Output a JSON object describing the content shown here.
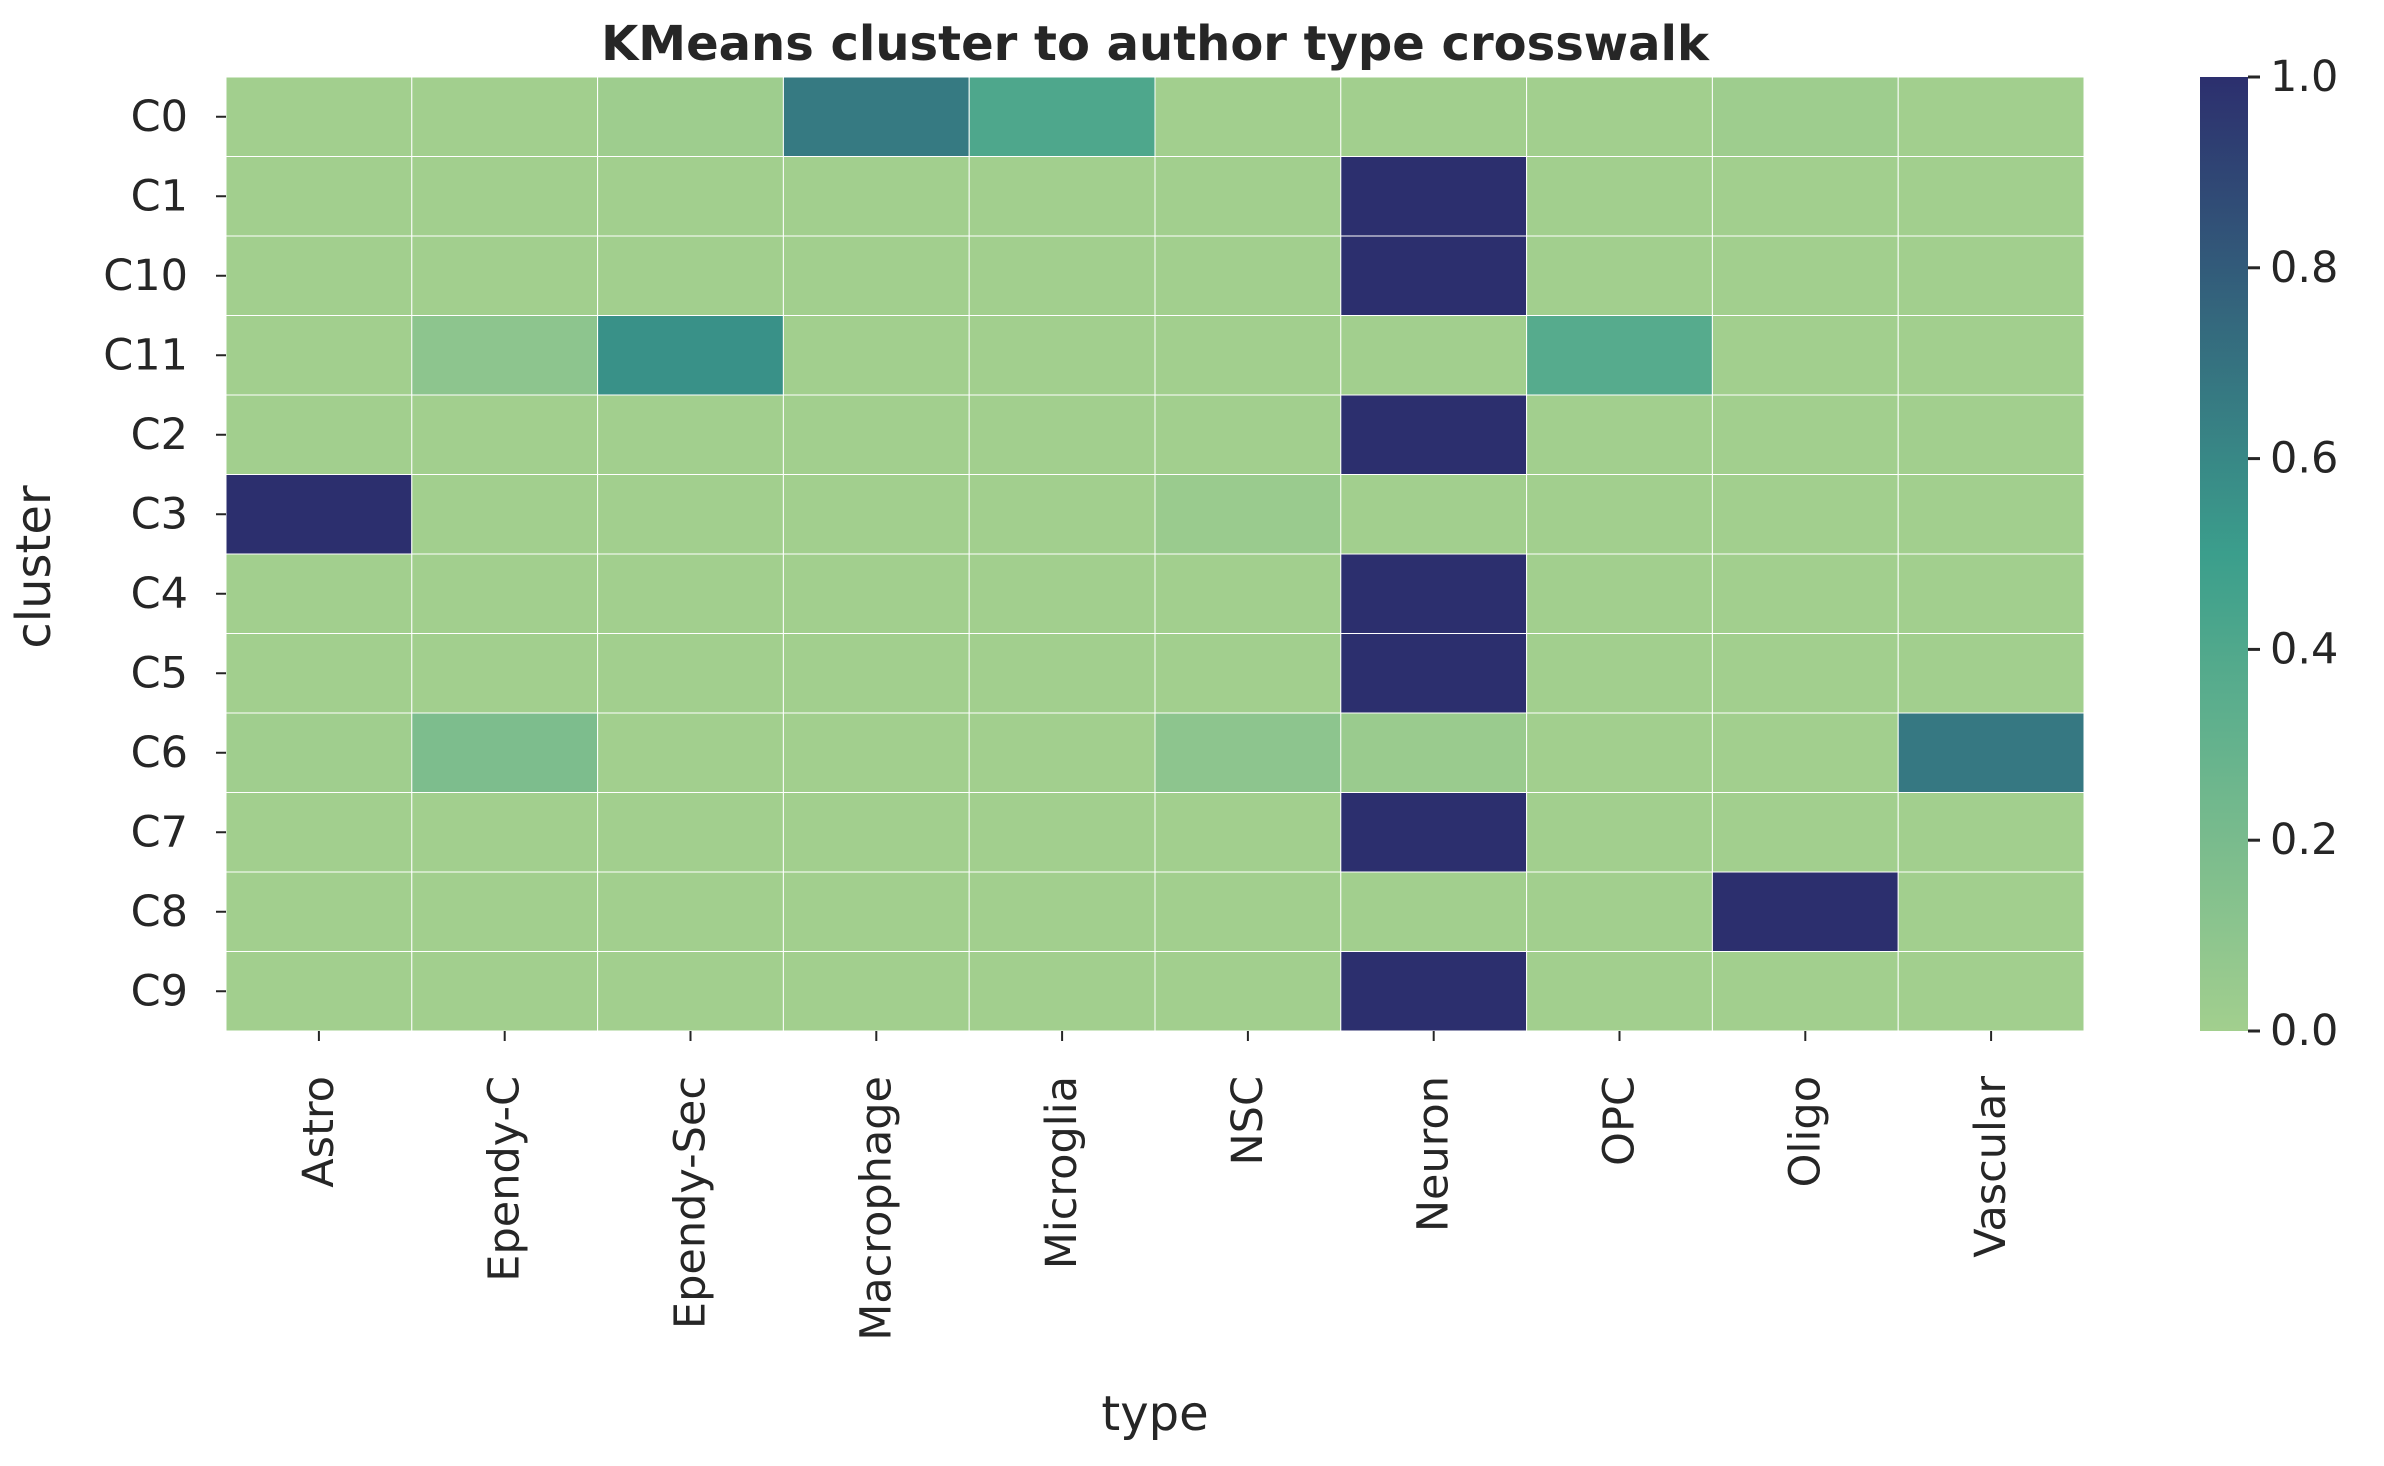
{
  "chart_data": {
    "type": "heatmap",
    "title": "KMeans cluster to author type crosswalk",
    "xlabel": "type",
    "ylabel": "cluster",
    "x_categories": [
      "Astro",
      "Ependy-C",
      "Ependy-Sec",
      "Macrophage",
      "Microglia",
      "NSC",
      "Neuron",
      "OPC",
      "Oligo",
      "Vascular"
    ],
    "y_categories": [
      "C0",
      "C1",
      "C10",
      "C11",
      "C2",
      "C3",
      "C4",
      "C5",
      "C6",
      "C7",
      "C8",
      "C9"
    ],
    "values": [
      [
        0.0,
        0.0,
        0.02,
        0.66,
        0.41,
        0.0,
        0.0,
        0.0,
        0.02,
        0.0
      ],
      [
        0.0,
        0.0,
        0.0,
        0.0,
        0.0,
        0.0,
        1.0,
        0.0,
        0.0,
        0.0
      ],
      [
        0.0,
        0.0,
        0.0,
        0.0,
        0.0,
        0.0,
        1.0,
        0.0,
        0.0,
        0.0
      ],
      [
        0.0,
        0.1,
        0.56,
        0.0,
        0.0,
        0.0,
        0.0,
        0.37,
        0.0,
        0.0
      ],
      [
        0.0,
        0.0,
        0.0,
        0.0,
        0.0,
        0.0,
        1.0,
        0.0,
        0.0,
        0.0
      ],
      [
        1.0,
        0.0,
        0.0,
        0.0,
        0.0,
        0.04,
        0.0,
        0.0,
        0.0,
        0.0
      ],
      [
        0.0,
        0.0,
        0.0,
        0.0,
        0.0,
        0.0,
        1.0,
        0.0,
        0.0,
        0.0
      ],
      [
        0.0,
        0.0,
        0.0,
        0.0,
        0.0,
        0.0,
        1.0,
        0.0,
        0.0,
        0.0
      ],
      [
        0.01,
        0.18,
        0.0,
        0.0,
        0.0,
        0.1,
        0.04,
        0.0,
        0.0,
        0.67
      ],
      [
        0.0,
        0.0,
        0.0,
        0.0,
        0.0,
        0.0,
        1.0,
        0.0,
        0.0,
        0.0
      ],
      [
        0.0,
        0.0,
        0.0,
        0.0,
        0.0,
        0.0,
        0.0,
        0.0,
        1.0,
        0.0
      ],
      [
        0.0,
        0.0,
        0.0,
        0.0,
        0.0,
        0.0,
        1.0,
        0.0,
        0.0,
        0.0
      ]
    ],
    "vmin": 0.0,
    "vmax": 1.0,
    "colormap": "crest",
    "colorbar": {
      "ticks": [
        0.0,
        0.2,
        0.4,
        0.6,
        0.8,
        1.0
      ],
      "tick_labels": [
        "0.0",
        "0.2",
        "0.4",
        "0.6",
        "0.8",
        "1.0"
      ]
    },
    "colors": {
      "low": "#a2cf8e",
      "mid": "#3b9e8c",
      "high": "#2c2f6e",
      "cell_border": "#ffffff"
    }
  }
}
